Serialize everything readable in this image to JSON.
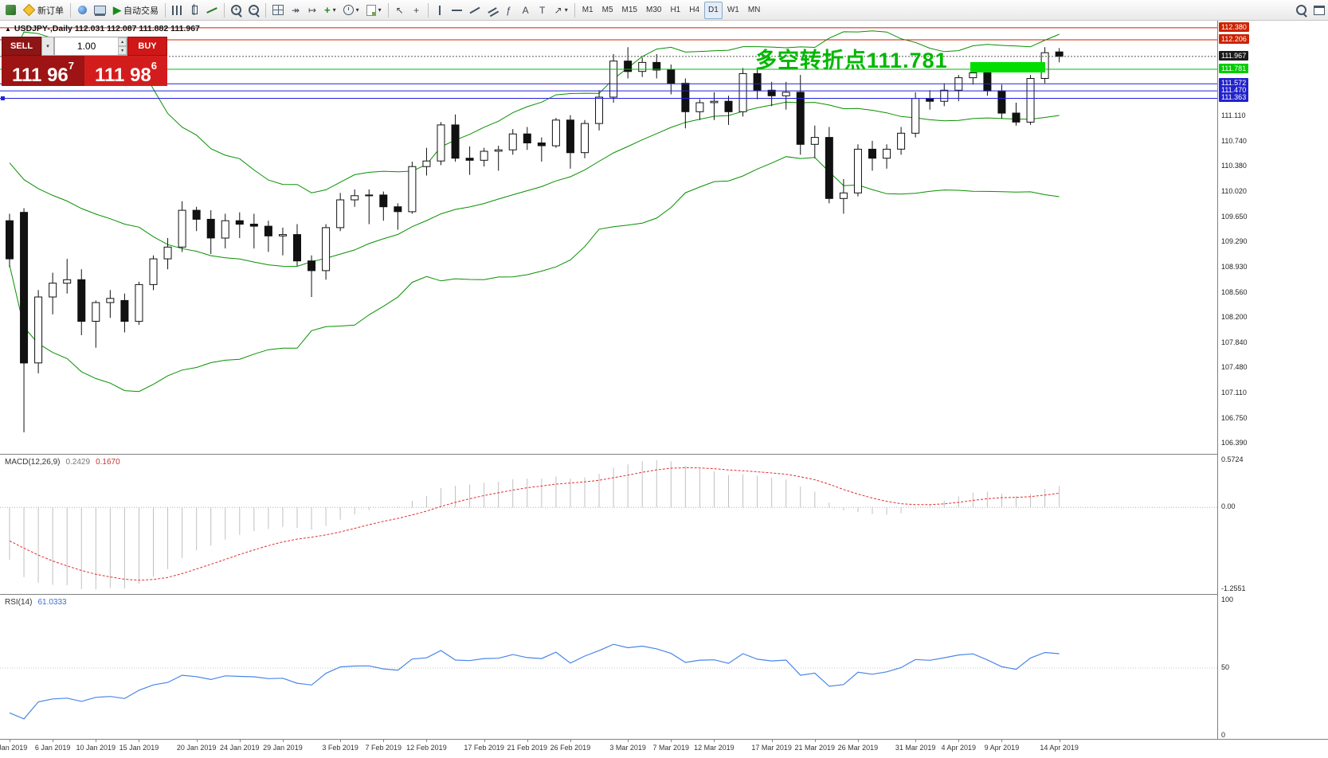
{
  "icons": {
    "caret": "▾",
    "plus": "+",
    "minus": "−",
    "play": "▶",
    "cursor": "↖",
    "crosshair": "+",
    "fibo": "ƒ",
    "text": "A",
    "label": "T",
    "arrow": "↗",
    "up": "▴",
    "down": "▾",
    "scroll": "↠",
    "shift": "↦",
    "indicator": "+",
    "triangle": "▲"
  },
  "toolbar": {
    "items": [
      {
        "t": "icon",
        "name": "app-icon",
        "css": "app"
      },
      {
        "t": "btn",
        "name": "new-order-button",
        "css": "neworder",
        "label": "新订单"
      },
      {
        "t": "sep"
      },
      {
        "t": "btn",
        "name": "market-watch-button",
        "css": "round"
      },
      {
        "t": "btn",
        "name": "chart-window-button",
        "css": "monitor"
      },
      {
        "t": "btn",
        "name": "auto-trading-button",
        "glyph": "play",
        "gcss": "green",
        "label": "自动交易"
      },
      {
        "t": "sep"
      },
      {
        "t": "btn",
        "name": "bar-chart-type-button",
        "css": "bars"
      },
      {
        "t": "btn",
        "name": "candlestick-type-button",
        "css": "candlei"
      },
      {
        "t": "btn",
        "name": "line-chart-type-button",
        "css": "linec"
      },
      {
        "t": "sep"
      },
      {
        "t": "btn",
        "name": "zoom-in-button",
        "css": "mag",
        "inner": "plus"
      },
      {
        "t": "btn",
        "name": "zoom-out-button",
        "css": "mag",
        "inner": "minus"
      },
      {
        "t": "sep"
      },
      {
        "t": "btn",
        "name": "tile-windows-button",
        "css": "tile"
      },
      {
        "t": "btn",
        "name": "auto-scroll-button",
        "glyph": "scroll"
      },
      {
        "t": "btn",
        "name": "chart-shift-button",
        "glyph": "shift"
      },
      {
        "t": "btn",
        "name": "indicators-button",
        "glyph": "indicator",
        "gcss": "green",
        "caret": true
      },
      {
        "t": "btn",
        "name": "periods-button",
        "css": "clock",
        "caret": true
      },
      {
        "t": "btn",
        "name": "templates-button",
        "css": "tmpl",
        "caret": true
      },
      {
        "t": "sep"
      },
      {
        "t": "btn",
        "name": "cursor-button",
        "glyph": "cursor"
      },
      {
        "t": "btn",
        "name": "crosshair-button",
        "glyph": "crosshair"
      },
      {
        "t": "sep"
      },
      {
        "t": "btn",
        "name": "vertical-line-button",
        "css": "vlinei"
      },
      {
        "t": "btn",
        "name": "horizontal-line-button",
        "css": "hlinei"
      },
      {
        "t": "btn",
        "name": "trendline-button",
        "css": "tlinei"
      },
      {
        "t": "btn",
        "name": "channel-button",
        "css": "chani"
      },
      {
        "t": "btn",
        "name": "fibonacci-button",
        "glyph": "fibo"
      },
      {
        "t": "btn",
        "name": "text-tool-button",
        "glyph": "text"
      },
      {
        "t": "btn",
        "name": "label-tool-button",
        "glyph": "label"
      },
      {
        "t": "btn",
        "name": "arrows-tool-button",
        "glyph": "arrow",
        "caret": true
      },
      {
        "t": "sep"
      },
      {
        "t": "btn",
        "name": "timeframe-m1",
        "label": "M1",
        "tf": true
      },
      {
        "t": "btn",
        "name": "timeframe-m5",
        "label": "M5",
        "tf": true
      },
      {
        "t": "btn",
        "name": "timeframe-m15",
        "label": "M15",
        "tf": true
      },
      {
        "t": "btn",
        "name": "timeframe-m30",
        "label": "M30",
        "tf": true
      },
      {
        "t": "btn",
        "name": "timeframe-h1",
        "label": "H1",
        "tf": true
      },
      {
        "t": "btn",
        "name": "timeframe-h4",
        "label": "H4",
        "tf": true
      },
      {
        "t": "btn",
        "name": "timeframe-d1",
        "label": "D1",
        "tf": true,
        "pressed": true
      },
      {
        "t": "btn",
        "name": "timeframe-w1",
        "label": "W1",
        "tf": true
      },
      {
        "t": "btn",
        "name": "timeframe-mn",
        "label": "MN",
        "tf": true
      },
      {
        "t": "spacer"
      },
      {
        "t": "btn",
        "name": "search-button",
        "css": "mag"
      },
      {
        "t": "btn",
        "name": "data-window-button",
        "css": "dwin"
      }
    ]
  },
  "chart": {
    "title": "USDJPY-,Daily 112.031 112.087 111.882 111.967",
    "annotation": "多空转折点111.781",
    "one_click": {
      "sell_label": "SELL",
      "buy_label": "BUY",
      "volume": "1.00",
      "sell_big": "111 96",
      "sell_sup": "7",
      "buy_big": "111 98",
      "buy_sup": "6"
    },
    "hlines": [
      {
        "price": 112.38,
        "color": "#cc2200"
      },
      {
        "price": 112.206,
        "color": "#cc2200"
      },
      {
        "price": 111.967,
        "color": "#555555",
        "dash": "2,2"
      },
      {
        "price": 111.781,
        "color": "#00bb00"
      },
      {
        "price": 111.572,
        "color": "#2222dd"
      },
      {
        "price": 111.47,
        "color": "#2222dd"
      },
      {
        "price": 111.363,
        "color": "#2222dd",
        "handle": true
      }
    ],
    "tags": [
      {
        "text": "112.380",
        "bg": "#cc2200"
      },
      {
        "text": "112.206",
        "bg": "#cc2200"
      },
      {
        "text": "111.967",
        "bg": "#1a1a1a"
      },
      {
        "text": "111.781",
        "bg": "#00cc00"
      },
      {
        "text": "111.572",
        "bg": "#2222cc"
      },
      {
        "text": "111.470",
        "bg": "#2222cc"
      },
      {
        "text": "111.363",
        "bg": "#2222cc"
      }
    ]
  },
  "axis": {
    "plain": [
      "111.110",
      "110.740",
      "110.380",
      "110.020",
      "109.650",
      "109.290",
      "108.930",
      "108.560",
      "108.200",
      "107.840",
      "107.480",
      "107.110",
      "106.750",
      "106.390"
    ]
  },
  "macd": {
    "name": "MACD(12,26,9)",
    "main": "0.2429",
    "signal": "0.1670",
    "axis": [
      "0.5724",
      "0.00",
      "-1.2551"
    ]
  },
  "rsi": {
    "name": "RSI(14)",
    "value": "61.0333",
    "axis": [
      "100",
      "50",
      "0"
    ]
  },
  "dates": [
    [
      "2 Jan 2019",
      0
    ],
    [
      "6 Jan 2019",
      3
    ],
    [
      "10 Jan 2019",
      6
    ],
    [
      "15 Jan 2019",
      9
    ],
    [
      "20 Jan 2019",
      13
    ],
    [
      "24 Jan 2019",
      16
    ],
    [
      "29 Jan 2019",
      19
    ],
    [
      "3 Feb 2019",
      23
    ],
    [
      "7 Feb 2019",
      26
    ],
    [
      "12 Feb 2019",
      29
    ],
    [
      "17 Feb 2019",
      33
    ],
    [
      "21 Feb 2019",
      36
    ],
    [
      "26 Feb 2019",
      39
    ],
    [
      "3 Mar 2019",
      43
    ],
    [
      "7 Mar 2019",
      46
    ],
    [
      "12 Mar 2019",
      49
    ],
    [
      "17 Mar 2019",
      53
    ],
    [
      "21 Mar 2019",
      56
    ],
    [
      "26 Mar 2019",
      59
    ],
    [
      "31 Mar 2019",
      63
    ],
    [
      "4 Apr 2019",
      66
    ],
    [
      "9 Apr 2019",
      69
    ],
    [
      "14 Apr 2019",
      73
    ]
  ],
  "colors": {
    "up_candle": "#ffffff",
    "down_candle": "#111111",
    "candle_outline": "#111111",
    "bollinger": "#089000",
    "macd_hist": "#c0c0c0",
    "macd_signal": "#e03030",
    "rsi_line": "#4a86e8",
    "annotation": "#00b800",
    "zone": "#00dd00"
  },
  "chart_data": {
    "type": "candlestick",
    "symbol": "USDJPY-",
    "timeframe": "Daily",
    "indicators": {
      "bollinger": [
        20,
        2
      ],
      "macd": [
        12,
        26,
        9
      ],
      "rsi": [
        14
      ]
    },
    "history_seed": [
      111.8,
      111.5,
      110.9,
      110.4,
      110.6,
      110.2,
      109.9,
      110.4,
      110.2,
      109.8
    ],
    "ohlc": [
      [
        109.6,
        109.7,
        108.93,
        109.05
      ],
      [
        109.72,
        109.78,
        106.55,
        107.55
      ],
      [
        107.55,
        108.6,
        107.4,
        108.5
      ],
      [
        108.5,
        108.85,
        108.25,
        108.7
      ],
      [
        108.7,
        109.05,
        108.55,
        108.75
      ],
      [
        108.75,
        108.9,
        107.95,
        108.15
      ],
      [
        108.15,
        108.45,
        107.77,
        108.42
      ],
      [
        108.42,
        108.6,
        108.2,
        108.48
      ],
      [
        108.45,
        108.55,
        107.99,
        108.15
      ],
      [
        108.15,
        108.72,
        108.1,
        108.68
      ],
      [
        108.68,
        109.1,
        108.6,
        109.05
      ],
      [
        109.05,
        109.35,
        108.9,
        109.22
      ],
      [
        109.22,
        109.88,
        109.15,
        109.75
      ],
      [
        109.75,
        109.8,
        109.45,
        109.62
      ],
      [
        109.62,
        109.75,
        109.12,
        109.35
      ],
      [
        109.35,
        109.7,
        109.2,
        109.6
      ],
      [
        109.6,
        109.72,
        109.35,
        109.55
      ],
      [
        109.55,
        109.7,
        109.2,
        109.52
      ],
      [
        109.52,
        109.6,
        109.15,
        109.38
      ],
      [
        109.38,
        109.5,
        109.1,
        109.4
      ],
      [
        109.4,
        109.55,
        108.95,
        109.02
      ],
      [
        109.02,
        109.1,
        108.5,
        108.88
      ],
      [
        108.88,
        109.55,
        108.75,
        109.5
      ],
      [
        109.5,
        110.0,
        109.45,
        109.9
      ],
      [
        109.9,
        110.05,
        109.8,
        109.96
      ],
      [
        109.96,
        110.05,
        109.55,
        109.97
      ],
      [
        109.97,
        110.02,
        109.6,
        109.8
      ],
      [
        109.8,
        109.85,
        109.47,
        109.73
      ],
      [
        109.73,
        110.45,
        109.7,
        110.38
      ],
      [
        110.38,
        110.65,
        110.25,
        110.46
      ],
      [
        110.46,
        111.02,
        110.4,
        110.98
      ],
      [
        110.98,
        111.13,
        110.45,
        110.5
      ],
      [
        110.5,
        110.67,
        110.26,
        110.47
      ],
      [
        110.47,
        110.65,
        110.38,
        110.6
      ],
      [
        110.6,
        110.68,
        110.32,
        110.62
      ],
      [
        110.62,
        110.92,
        110.55,
        110.85
      ],
      [
        110.85,
        110.95,
        110.62,
        110.72
      ],
      [
        110.72,
        110.8,
        110.45,
        110.68
      ],
      [
        110.68,
        111.08,
        110.65,
        111.05
      ],
      [
        111.05,
        111.12,
        110.35,
        110.58
      ],
      [
        110.58,
        111.05,
        110.5,
        111.0
      ],
      [
        111.0,
        111.48,
        110.9,
        111.38
      ],
      [
        111.38,
        112.0,
        111.3,
        111.9
      ],
      [
        111.9,
        112.1,
        111.65,
        111.75
      ],
      [
        111.75,
        111.95,
        111.67,
        111.88
      ],
      [
        111.88,
        112.0,
        111.65,
        111.77
      ],
      [
        111.77,
        111.85,
        111.42,
        111.58
      ],
      [
        111.58,
        111.65,
        110.93,
        111.17
      ],
      [
        111.17,
        111.35,
        111.05,
        111.3
      ],
      [
        111.3,
        111.45,
        111.05,
        111.32
      ],
      [
        111.32,
        111.4,
        110.98,
        111.17
      ],
      [
        111.17,
        111.8,
        111.1,
        111.72
      ],
      [
        111.72,
        111.8,
        111.35,
        111.48
      ],
      [
        111.48,
        111.6,
        111.25,
        111.4
      ],
      [
        111.4,
        111.6,
        111.2,
        111.45
      ],
      [
        111.45,
        111.7,
        110.55,
        110.7
      ],
      [
        110.7,
        110.97,
        110.5,
        110.8
      ],
      [
        110.8,
        110.95,
        109.85,
        109.92
      ],
      [
        109.92,
        110.2,
        109.7,
        110.0
      ],
      [
        110.0,
        110.7,
        109.95,
        110.63
      ],
      [
        110.63,
        110.75,
        110.32,
        110.5
      ],
      [
        110.5,
        110.7,
        110.35,
        110.63
      ],
      [
        110.63,
        110.95,
        110.55,
        110.86
      ],
      [
        110.86,
        111.45,
        110.8,
        111.36
      ],
      [
        111.36,
        111.48,
        111.2,
        111.32
      ],
      [
        111.32,
        111.58,
        111.25,
        111.48
      ],
      [
        111.48,
        111.7,
        111.32,
        111.66
      ],
      [
        111.66,
        111.82,
        111.56,
        111.73
      ],
      [
        111.73,
        111.77,
        111.4,
        111.47
      ],
      [
        111.47,
        111.56,
        111.07,
        111.15
      ],
      [
        111.15,
        111.3,
        110.97,
        111.02
      ],
      [
        111.02,
        111.7,
        110.98,
        111.65
      ],
      [
        111.65,
        112.1,
        111.58,
        112.02
      ],
      [
        112.031,
        112.087,
        111.882,
        111.967
      ]
    ]
  }
}
